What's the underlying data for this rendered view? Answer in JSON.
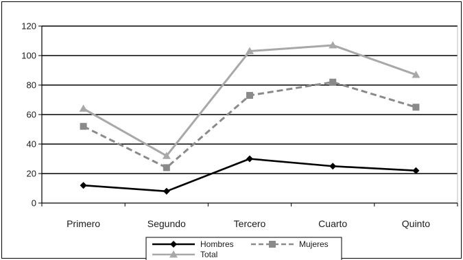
{
  "chart_data": {
    "type": "line",
    "categories": [
      "Primero",
      "Segundo",
      "Tercero",
      "Cuarto",
      "Quinto"
    ],
    "series": [
      {
        "name": "Hombres",
        "values": [
          12,
          8,
          30,
          25,
          22
        ],
        "color": "#000000",
        "dash": "solid",
        "marker": "diamond"
      },
      {
        "name": "Mujeres",
        "values": [
          52,
          24,
          73,
          82,
          65
        ],
        "color": "#8a8a8a",
        "dash": "dashed",
        "marker": "square"
      },
      {
        "name": "Total",
        "values": [
          64,
          32,
          103,
          107,
          87
        ],
        "color": "#a8a8a8",
        "dash": "solid",
        "marker": "triangle"
      }
    ],
    "ylim": [
      0,
      120
    ],
    "yticks": [
      "0",
      "20",
      "40",
      "60",
      "80",
      "100",
      "120"
    ],
    "grid": true,
    "legend_position": "bottom",
    "title": "",
    "xlabel": "",
    "ylabel": ""
  }
}
